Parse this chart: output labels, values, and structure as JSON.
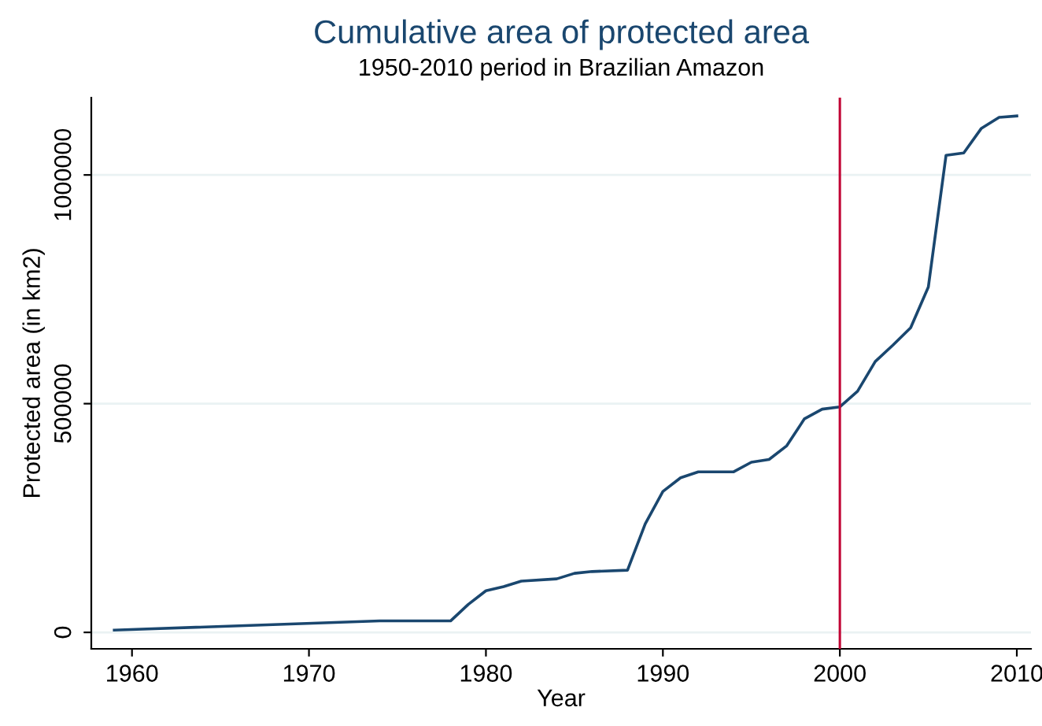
{
  "chart_data": {
    "type": "line",
    "title": "Cumulative area of protected area",
    "subtitle": "1950-2010 period in Brazilian Amazon",
    "xlabel": "Year",
    "ylabel": "Protected area (in km2)",
    "series": [
      {
        "color": "#1a476f",
        "x": [
          1959,
          1974,
          1978,
          1979,
          1980,
          1981,
          1982,
          1984,
          1985,
          1986,
          1988,
          1989,
          1990,
          1991,
          1992,
          1994,
          1995,
          1996,
          1997,
          1998,
          1999,
          2000,
          2001,
          2002,
          2003,
          2004,
          2005,
          2006,
          2007,
          2008,
          2009,
          2010
        ],
        "values": [
          5000,
          25000,
          25000,
          61000,
          91000,
          100000,
          112000,
          117000,
          129000,
          133000,
          136000,
          237000,
          308000,
          338000,
          351000,
          351000,
          372000,
          378000,
          408000,
          467000,
          488000,
          493000,
          527000,
          592000,
          628000,
          666000,
          755000,
          1043000,
          1048000,
          1102000,
          1126000,
          1129000
        ]
      }
    ],
    "xlim": [
      1957.7,
      2010.8
    ],
    "xticks": [
      1960,
      1970,
      1980,
      1990,
      2000,
      2010
    ],
    "ylim": [
      -36000,
      1169000
    ],
    "yticks": [
      0,
      500000,
      1000000
    ],
    "grid": "y",
    "ref_lines": [
      {
        "axis": "x",
        "value": 2000,
        "color": "#c10534"
      }
    ]
  }
}
